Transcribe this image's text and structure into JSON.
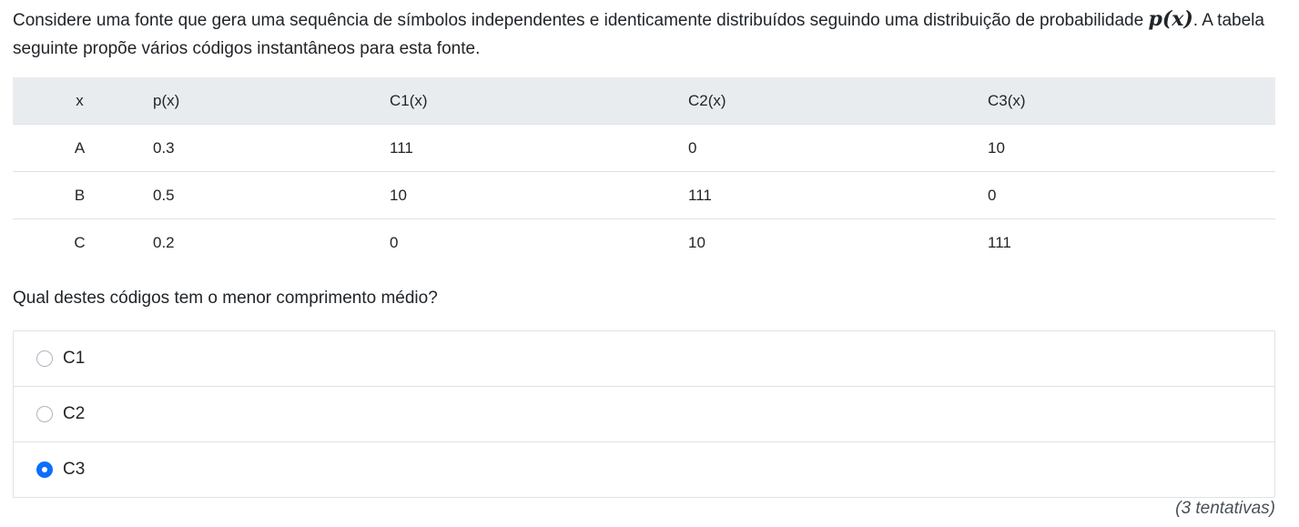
{
  "question": {
    "text_before": "Considere uma fonte que gera uma sequência de símbolos independentes e identicamente distribuídos seguindo uma distribuição de probabilidade ",
    "math": "p(x)",
    "text_after": ". A tabela seguinte propõe vários códigos instantâneos para esta fonte."
  },
  "table": {
    "headers": [
      "x",
      "p(x)",
      "C1(x)",
      "C2(x)",
      "C3(x)"
    ],
    "rows": [
      [
        "A",
        "0.3",
        "111",
        "0",
        "10"
      ],
      [
        "B",
        "0.5",
        "10",
        "111",
        "0"
      ],
      [
        "C",
        "0.2",
        "0",
        "10",
        "111"
      ]
    ]
  },
  "prompt": "Qual destes códigos tem o menor comprimento médio?",
  "options": [
    {
      "label": "C1",
      "selected": false
    },
    {
      "label": "C2",
      "selected": false
    },
    {
      "label": "C3",
      "selected": true
    }
  ],
  "attempts": "(3 tentativas)",
  "colors": {
    "accent": "#0d6efd",
    "header_bg": "#e9ecef",
    "border": "#dee2e6"
  }
}
